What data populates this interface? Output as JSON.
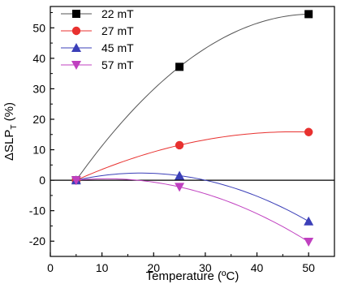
{
  "chart_data": {
    "type": "scatter",
    "xlabel": "Temperature (ºC)",
    "ylabel_main": "ΔSLP",
    "ylabel_sub": "T",
    "ylabel_unit": " (%)",
    "xlim": [
      0,
      55
    ],
    "ylim": [
      -25,
      57
    ],
    "xticks": [
      0,
      10,
      20,
      30,
      40,
      50
    ],
    "yticks": [
      -20,
      -10,
      0,
      10,
      20,
      30,
      40,
      50
    ],
    "zero_line": true,
    "legend_position": "top-left",
    "series": [
      {
        "name": "22 mT",
        "marker": "square",
        "color": "#000000",
        "line_color": "#555555",
        "x": [
          5,
          25,
          50
        ],
        "y": [
          0,
          37.2,
          54.5
        ]
      },
      {
        "name": "27 mT",
        "marker": "circle",
        "color": "#e8312f",
        "line_color": "#e8312f",
        "x": [
          5,
          25,
          50
        ],
        "y": [
          0,
          11.5,
          15.8
        ]
      },
      {
        "name": "45 mT",
        "marker": "triangle-up",
        "color": "#3b3fb8",
        "line_color": "#3b3fb8",
        "x": [
          5,
          25,
          50
        ],
        "y": [
          0,
          1.5,
          -13.5
        ]
      },
      {
        "name": "57 mT",
        "marker": "triangle-down",
        "color": "#c040c0",
        "line_color": "#c040c0",
        "x": [
          5,
          25,
          50
        ],
        "y": [
          0,
          -2.2,
          -20.2
        ]
      }
    ]
  }
}
